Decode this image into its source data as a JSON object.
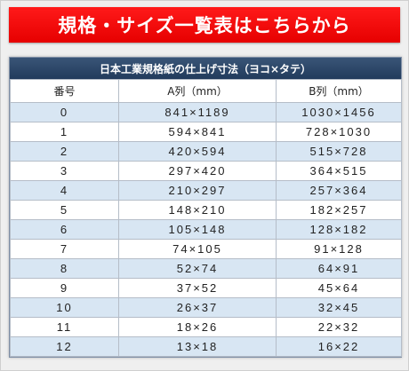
{
  "banner": {
    "text": "規格・サイズ一覧表はこちらから"
  },
  "table": {
    "title": "日本工業規格紙の仕上げ寸法（ヨコ×タテ）",
    "headers": [
      "番号",
      "A列（mm）",
      "B列（mm）"
    ],
    "rows": [
      [
        "0",
        "841×1189",
        "1030×1456"
      ],
      [
        "1",
        "594×841",
        "728×1030"
      ],
      [
        "2",
        "420×594",
        "515×728"
      ],
      [
        "3",
        "297×420",
        "364×515"
      ],
      [
        "4",
        "210×297",
        "257×364"
      ],
      [
        "5",
        "148×210",
        "182×257"
      ],
      [
        "6",
        "105×148",
        "128×182"
      ],
      [
        "7",
        "74×105",
        "91×128"
      ],
      [
        "8",
        "52×74",
        "64×91"
      ],
      [
        "9",
        "37×52",
        "45×64"
      ],
      [
        "10",
        "26×37",
        "32×45"
      ],
      [
        "11",
        "18×26",
        "22×32"
      ],
      [
        "12",
        "13×18",
        "16×22"
      ]
    ]
  },
  "colors": {
    "banner": "#e60000",
    "title_bar": "#2c4568",
    "row_stripe": "#d8e6f3"
  }
}
